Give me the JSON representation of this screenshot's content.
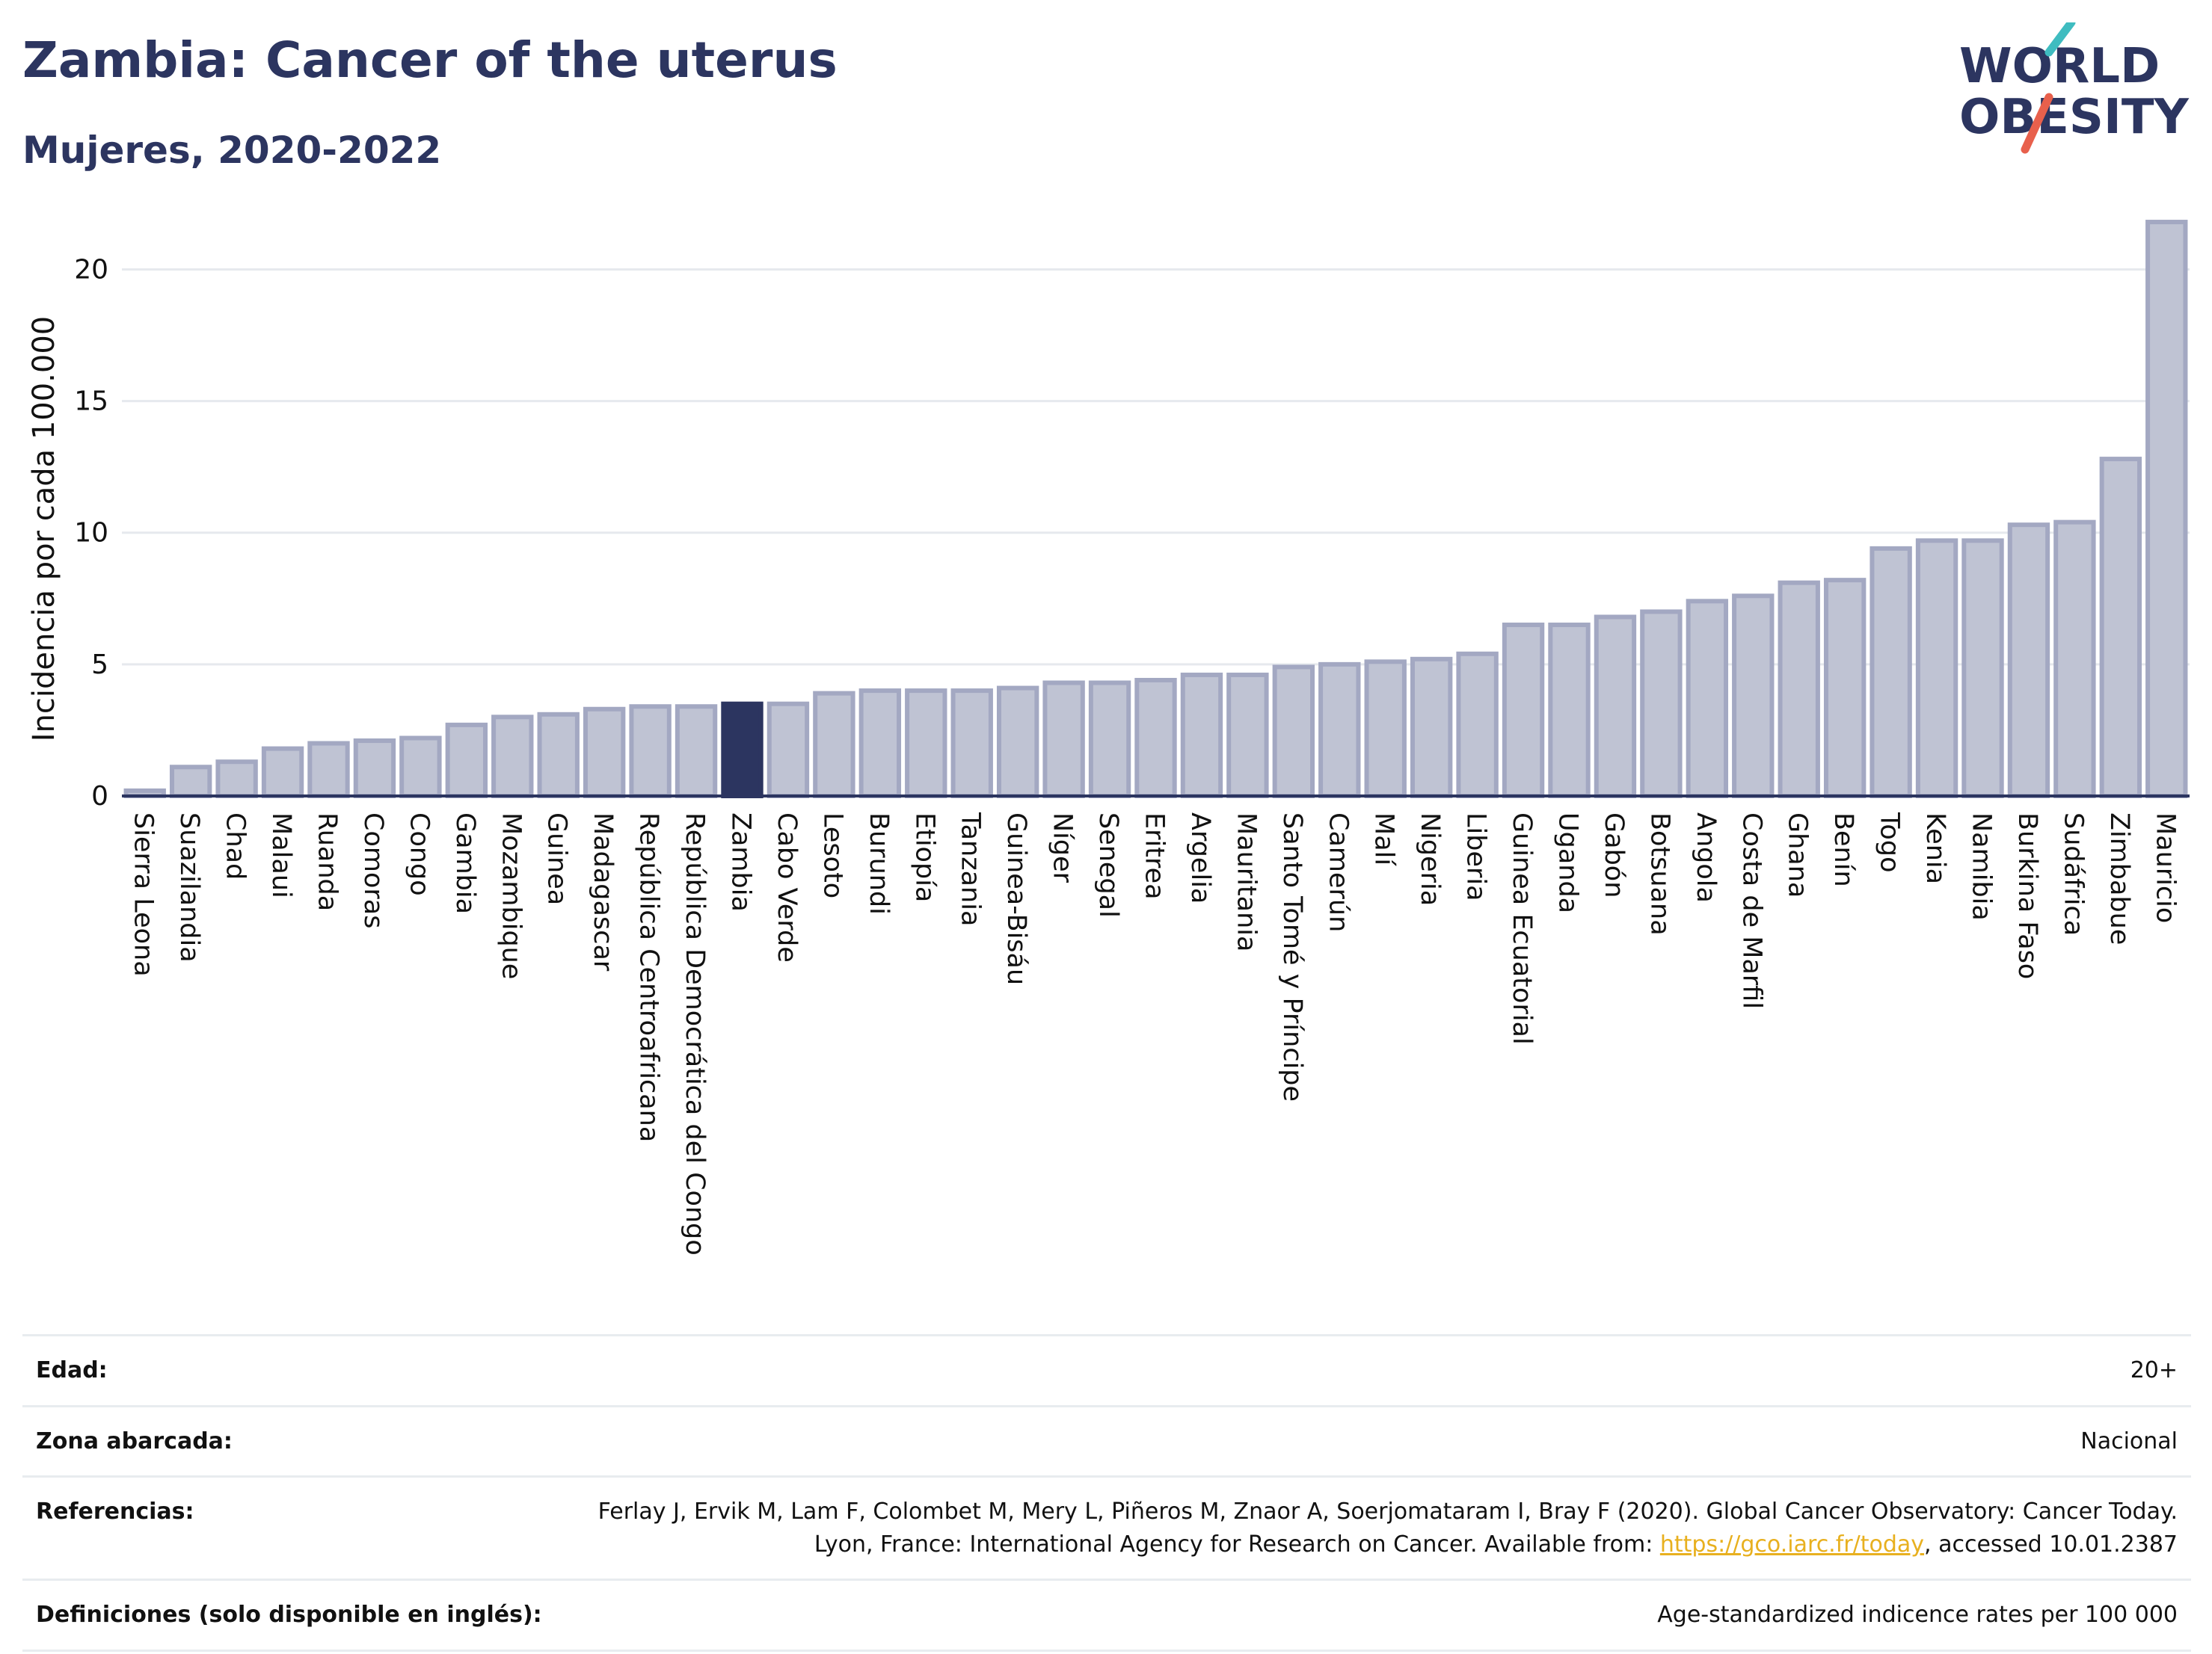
{
  "header": {
    "title": "Zambia: Cancer of the uterus",
    "subtitle": "Mujeres, 2020-2022"
  },
  "logo": {
    "line1": "WORLD",
    "line2": "OBESITY",
    "colors": {
      "text": "#2c3560",
      "slash_teal": "#3fbcc0",
      "slash_red": "#e8604c"
    }
  },
  "chart_data": {
    "type": "bar",
    "ylabel": "Incidencia por cada 100.000",
    "ylim": [
      0,
      22
    ],
    "yticks": [
      0,
      5,
      10,
      15,
      20
    ],
    "grid": true,
    "highlight": "Zambia",
    "colors": {
      "bar": "#bfc3d3",
      "bar_stroke": "#a3a8c2",
      "highlight": "#2c3560"
    },
    "categories": [
      "Sierra Leona",
      "Suazilandia",
      "Chad",
      "Malaui",
      "Ruanda",
      "Comoras",
      "Congo",
      "Gambia",
      "Mozambique",
      "Guinea",
      "Madagascar",
      "República Centroafricana",
      "República Democrática del Congo",
      "Zambia",
      "Cabo Verde",
      "Lesoto",
      "Burundi",
      "Etiopía",
      "Tanzania",
      "Guinea-Bisáu",
      "Níger",
      "Senegal",
      "Eritrea",
      "Argelia",
      "Mauritania",
      "Santo Tomé y Príncipe",
      "Camerún",
      "Malí",
      "Nigeria",
      "Liberia",
      "Guinea Ecuatorial",
      "Uganda",
      "Gabón",
      "Botsuana",
      "Angola",
      "Costa de Marfil",
      "Ghana",
      "Benín",
      "Togo",
      "Kenia",
      "Namibia",
      "Burkina Faso",
      "Sudáfrica",
      "Zimbabue",
      "Mauricio"
    ],
    "values": [
      0.2,
      1.1,
      1.3,
      1.8,
      2.0,
      2.1,
      2.2,
      2.7,
      3.0,
      3.1,
      3.3,
      3.4,
      3.4,
      3.5,
      3.5,
      3.9,
      4.0,
      4.0,
      4.0,
      4.1,
      4.3,
      4.3,
      4.4,
      4.6,
      4.6,
      4.9,
      5.0,
      5.1,
      5.2,
      5.4,
      6.5,
      6.5,
      6.8,
      7.0,
      7.4,
      7.6,
      8.1,
      8.2,
      9.4,
      9.7,
      9.7,
      10.3,
      10.4,
      12.8,
      21.8
    ]
  },
  "info": {
    "rows": [
      {
        "label": "Edad:",
        "value": "20+"
      },
      {
        "label": "Zona abarcada:",
        "value": "Nacional"
      },
      {
        "label": "Referencias:",
        "value": "Ferlay J, Ervik M, Lam F, Colombet M, Mery L, Piñeros M, Znaor A, Soerjomataram I, Bray F (2020). Global Cancer Observatory: Cancer Today. Lyon, France: International Agency for Research on Cancer. Available from:",
        "link": "https://gco.iarc.fr/today",
        "suffix": ", accessed 10.01.2387"
      },
      {
        "label": "Definiciones (solo disponible en inglés):",
        "value": "Age-standardized indicence rates per 100 000"
      }
    ]
  }
}
